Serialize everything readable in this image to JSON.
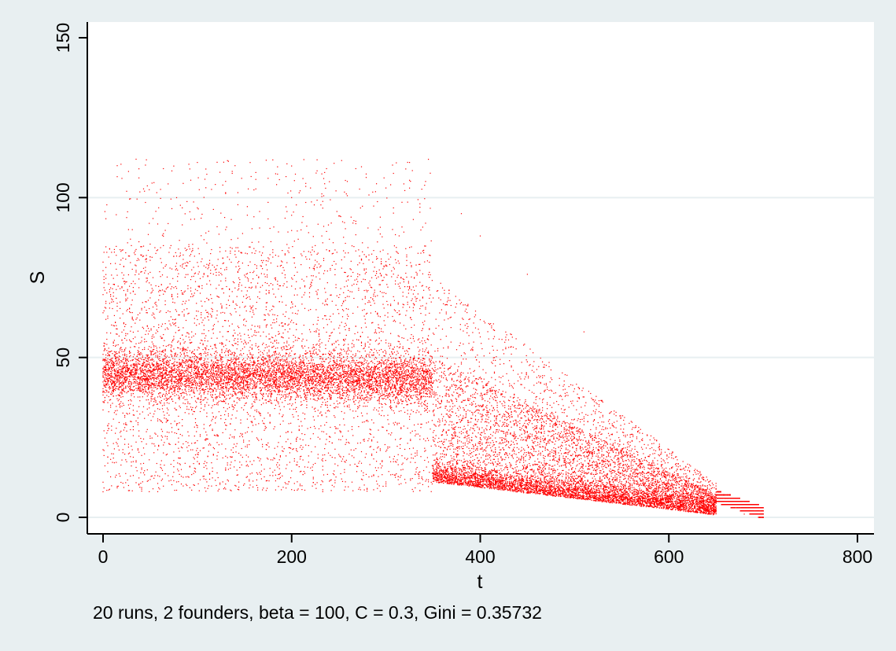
{
  "chart_data": {
    "type": "scatter",
    "title": "",
    "xlabel": "t",
    "ylabel": "S",
    "note": "20 runs, 2 founders, beta = 100, C =  0.3, Gini = 0.35732",
    "xlim": [
      0,
      800
    ],
    "ylim": [
      0,
      150
    ],
    "xticks": [
      0,
      200,
      400,
      600,
      800
    ],
    "yticks": [
      0,
      50,
      100,
      150
    ],
    "grid": "horizontal",
    "legend": "none",
    "marker_color": "#ff0000",
    "approximate_point_count": 20000,
    "description_of_density": "Dense band near S=45 from t=0 to t=350, declining to S=0 by t=700; sparse outliers up to S=112; secondary band near S=10 from t=350 to t=700",
    "series": [
      {
        "values_sample": [
          [
            0,
            8
          ],
          [
            0,
            11
          ],
          [
            5,
            45
          ],
          [
            10,
            44
          ],
          [
            15,
            110
          ],
          [
            20,
            106
          ],
          [
            35,
            112
          ],
          [
            50,
            47
          ],
          [
            100,
            111
          ],
          [
            100,
            44
          ],
          [
            140,
            110
          ],
          [
            150,
            45
          ],
          [
            200,
            100
          ],
          [
            220,
            103
          ],
          [
            250,
            44
          ],
          [
            300,
            103
          ],
          [
            300,
            42
          ],
          [
            330,
            75
          ],
          [
            380,
            95
          ],
          [
            400,
            88
          ],
          [
            400,
            35
          ],
          [
            450,
            76
          ],
          [
            450,
            10
          ],
          [
            500,
            25
          ],
          [
            510,
            58
          ],
          [
            550,
            8
          ],
          [
            600,
            6
          ],
          [
            650,
            3
          ],
          [
            680,
            1
          ],
          [
            695,
            0
          ],
          [
            700,
            0
          ]
        ]
      }
    ]
  },
  "colors": {
    "background": "#e8eff1",
    "plot_area": "#ffffff",
    "gridline": "#e8eff1",
    "axis": "#000000",
    "marker": "#ff0000"
  }
}
